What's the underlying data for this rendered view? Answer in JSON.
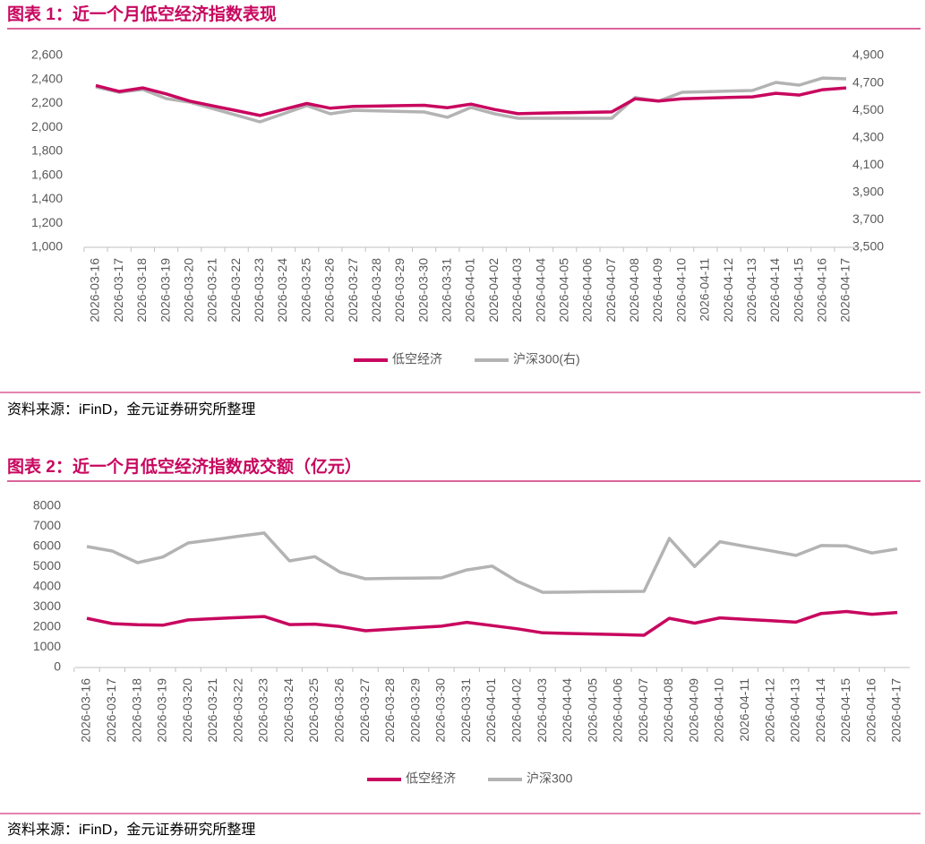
{
  "chart_data": [
    {
      "type": "line",
      "title": "图表 1：近一个月低空经济指数表现",
      "source": "资料来源：iFinD，金元证券研究所整理",
      "legend": "bottom",
      "categories": [
        "2026-03-16",
        "2026-03-17",
        "2026-03-18",
        "2026-03-19",
        "2026-03-20",
        "2026-03-21",
        "2026-03-22",
        "2026-03-23",
        "2026-03-24",
        "2026-03-25",
        "2026-03-26",
        "2026-03-27",
        "2026-03-28",
        "2026-03-29",
        "2026-03-30",
        "2026-03-31",
        "2026-04-01",
        "2026-04-02",
        "2026-04-03",
        "2026-04-04",
        "2026-04-05",
        "2026-04-06",
        "2026-04-07",
        "2026-04-08",
        "2026-04-09",
        "2026-04-10",
        "2026-04-11",
        "2026-04-12",
        "2026-04-13",
        "2026-04-14",
        "2026-04-15",
        "2026-04-16",
        "2026-04-17"
      ],
      "series": [
        {
          "name": "低空经济",
          "color": "#c8075f",
          "values": [
            2350,
            2300,
            2330,
            2280,
            2220,
            2180,
            2140,
            2100,
            2150,
            2200,
            2160,
            2175,
            2178,
            2182,
            2185,
            2165,
            2195,
            2150,
            2115,
            2119,
            2123,
            2126,
            2130,
            2240,
            2220,
            2240,
            2245,
            2250,
            2255,
            2285,
            2270,
            2315,
            2330
          ]
        },
        {
          "name": "沪深300(右)",
          "color": "#b3b3b3",
          "axis": "y2",
          "values": [
            4671,
            4632,
            4652,
            4586,
            4560,
            4512,
            4464,
            4416,
            4475,
            4534,
            4475,
            4500,
            4496,
            4492,
            4488,
            4449,
            4521,
            4475,
            4442,
            4442,
            4442,
            4442,
            4442,
            4593,
            4567,
            4632,
            4636,
            4641,
            4645,
            4704,
            4684,
            4736,
            4730
          ]
        }
      ],
      "ylim": [
        1000,
        2600
      ],
      "yticks": [
        {
          "value": 1000,
          "label": "1,000"
        },
        {
          "value": 1200,
          "label": "1,200"
        },
        {
          "value": 1400,
          "label": "1,400"
        },
        {
          "value": 1600,
          "label": "1,600"
        },
        {
          "value": 1800,
          "label": "1,800"
        },
        {
          "value": 2000,
          "label": "2,000"
        },
        {
          "value": 2200,
          "label": "2,200"
        },
        {
          "value": 2400,
          "label": "2,400"
        },
        {
          "value": 2600,
          "label": "2,600"
        }
      ],
      "y2lim": [
        3500,
        4900
      ],
      "y2ticks": [
        {
          "value": 3500,
          "label": "3,500"
        },
        {
          "value": 3700,
          "label": "3,700"
        },
        {
          "value": 3900,
          "label": "3,900"
        },
        {
          "value": 4100,
          "label": "4,100"
        },
        {
          "value": 4300,
          "label": "4,300"
        },
        {
          "value": 4500,
          "label": "4,500"
        },
        {
          "value": 4700,
          "label": "4,700"
        },
        {
          "value": 4900,
          "label": "4,900"
        }
      ]
    },
    {
      "type": "line",
      "title": "图表 2：近一个月低空经济指数成交额（亿元）",
      "source": "资料来源：iFinD，金元证券研究所整理",
      "legend": "bottom",
      "categories": [
        "2026-03-16",
        "2026-03-17",
        "2026-03-18",
        "2026-03-19",
        "2026-03-20",
        "2026-03-21",
        "2026-03-22",
        "2026-03-23",
        "2026-03-24",
        "2026-03-25",
        "2026-03-26",
        "2026-03-27",
        "2026-03-28",
        "2026-03-29",
        "2026-03-30",
        "2026-03-31",
        "2026-04-01",
        "2026-04-02",
        "2026-04-03",
        "2026-04-04",
        "2026-04-05",
        "2026-04-06",
        "2026-04-07",
        "2026-04-08",
        "2026-04-09",
        "2026-04-10",
        "2026-04-11",
        "2026-04-12",
        "2026-04-13",
        "2026-04-14",
        "2026-04-15",
        "2026-04-16",
        "2026-04-17"
      ],
      "series": [
        {
          "name": "低空经济",
          "color": "#c8075f",
          "values": [
            2440,
            2180,
            2120,
            2100,
            2360,
            2420,
            2480,
            2530,
            2130,
            2150,
            2030,
            1820,
            1900,
            1980,
            2050,
            2240,
            2080,
            1920,
            1720,
            1690,
            1660,
            1630,
            1600,
            2440,
            2200,
            2460,
            2390,
            2320,
            2250,
            2680,
            2780,
            2640,
            2730
          ]
        },
        {
          "name": "沪深300",
          "color": "#b3b3b3",
          "values": [
            6000,
            5780,
            5200,
            5480,
            6180,
            6340,
            6510,
            6670,
            5290,
            5500,
            4730,
            4400,
            4420,
            4430,
            4450,
            4840,
            5030,
            4270,
            3730,
            3740,
            3760,
            3770,
            3780,
            6400,
            5010,
            6240,
            6010,
            5790,
            5560,
            6050,
            6030,
            5680,
            5880
          ]
        }
      ],
      "ylim": [
        0,
        8000
      ],
      "yticks": [
        0,
        1000,
        2000,
        3000,
        4000,
        5000,
        6000,
        7000,
        8000
      ]
    }
  ]
}
